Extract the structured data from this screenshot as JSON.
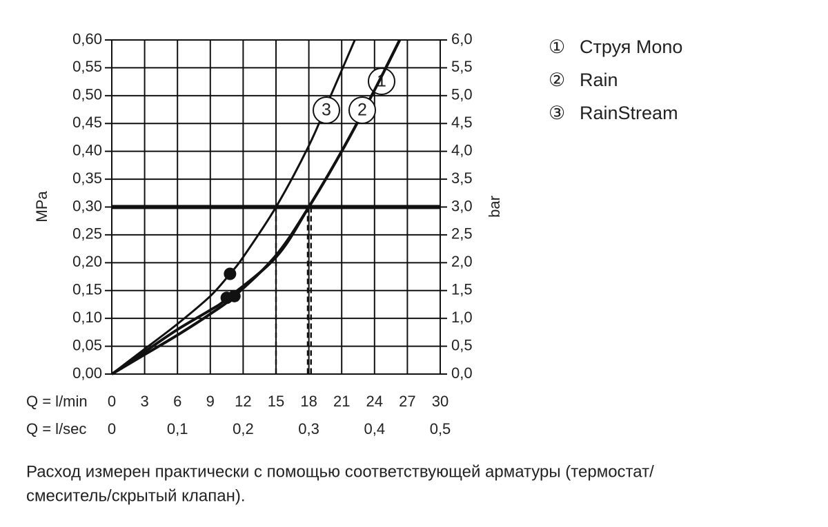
{
  "chart_data": {
    "type": "line",
    "y_label": "MPa",
    "y2_label": "bar",
    "x_row_label": "Q = l/min",
    "x2_row_label": "Q = l/sec",
    "xlim": [
      0,
      30
    ],
    "xticks": [
      0,
      3,
      6,
      9,
      12,
      15,
      18,
      21,
      24,
      27,
      30
    ],
    "x2lim": [
      0,
      0.5
    ],
    "x2ticks": [
      0,
      {
        "value": 0.1,
        "label": "0,1"
      },
      {
        "value": 0.2,
        "label": "0,2"
      },
      {
        "value": 0.3,
        "label": "0,3"
      },
      {
        "value": 0.4,
        "label": "0,4"
      },
      {
        "value": 0.5,
        "label": "0,5"
      }
    ],
    "ylim": [
      0,
      0.6
    ],
    "yticks": [
      {
        "value": 0,
        "label": "0,00"
      },
      {
        "value": 0.05,
        "label": "0,05"
      },
      {
        "value": 0.1,
        "label": "0,10"
      },
      {
        "value": 0.15,
        "label": "0,15"
      },
      {
        "value": 0.2,
        "label": "0,20"
      },
      {
        "value": 0.25,
        "label": "0,25"
      },
      {
        "value": 0.3,
        "label": "0,30"
      },
      {
        "value": 0.35,
        "label": "0,35"
      },
      {
        "value": 0.4,
        "label": "0,40"
      },
      {
        "value": 0.45,
        "label": "0,45"
      },
      {
        "value": 0.5,
        "label": "0,50"
      },
      {
        "value": 0.55,
        "label": "0,55"
      },
      {
        "value": 0.6,
        "label": "0,60"
      }
    ],
    "y2lim": [
      0,
      6
    ],
    "y2ticks": [
      {
        "value": 0,
        "label": "0,0"
      },
      {
        "value": 0.5,
        "label": "0,5"
      },
      {
        "value": 1,
        "label": "1,0"
      },
      {
        "value": 1.5,
        "label": "1,5"
      },
      {
        "value": 2,
        "label": "2,0"
      },
      {
        "value": 2.5,
        "label": "2,5"
      },
      {
        "value": 3,
        "label": "3,0"
      },
      {
        "value": 3.5,
        "label": "3,5"
      },
      {
        "value": 4,
        "label": "4,0"
      },
      {
        "value": 4.5,
        "label": "4,5"
      },
      {
        "value": 5,
        "label": "5,0"
      },
      {
        "value": 5.5,
        "label": "5,5"
      },
      {
        "value": 6,
        "label": "6,0"
      }
    ],
    "grid": true,
    "color": "#111111",
    "reference_y": 0.3,
    "reference_x": [
      15,
      17.9,
      18.2
    ],
    "series": [
      {
        "name": "Струя Mono",
        "symbol": "①",
        "curve_label": "1",
        "x": [
          0,
          3,
          6,
          9,
          11.2,
          15,
          18,
          21,
          24,
          26.3
        ],
        "values": [
          0,
          0.035,
          0.07,
          0.108,
          0.14,
          0.213,
          0.3,
          0.4,
          0.51,
          0.6
        ],
        "point": [
          11.2,
          0.14
        ]
      },
      {
        "name": "Rain",
        "symbol": "②",
        "curve_label": "2",
        "x": [
          0,
          3,
          6,
          9,
          10.5,
          15,
          18,
          21,
          24,
          26.3
        ],
        "values": [
          0,
          0.04,
          0.08,
          0.115,
          0.135,
          0.21,
          0.3,
          0.4,
          0.51,
          0.6
        ],
        "point": [
          10.5,
          0.137
        ]
      },
      {
        "name": "RainStream",
        "symbol": "③",
        "curve_label": "3",
        "x": [
          0,
          3,
          6,
          9,
          10.8,
          12,
          15,
          18,
          20,
          22.2
        ],
        "values": [
          0,
          0.045,
          0.09,
          0.14,
          0.18,
          0.21,
          0.3,
          0.41,
          0.5,
          0.6
        ],
        "point": [
          10.8,
          0.18
        ]
      }
    ],
    "footnote": [
      "Расход измерен практически с помощью соответствующей арматуры (термостат/",
      "смеситель/скрытый клапан)."
    ]
  }
}
